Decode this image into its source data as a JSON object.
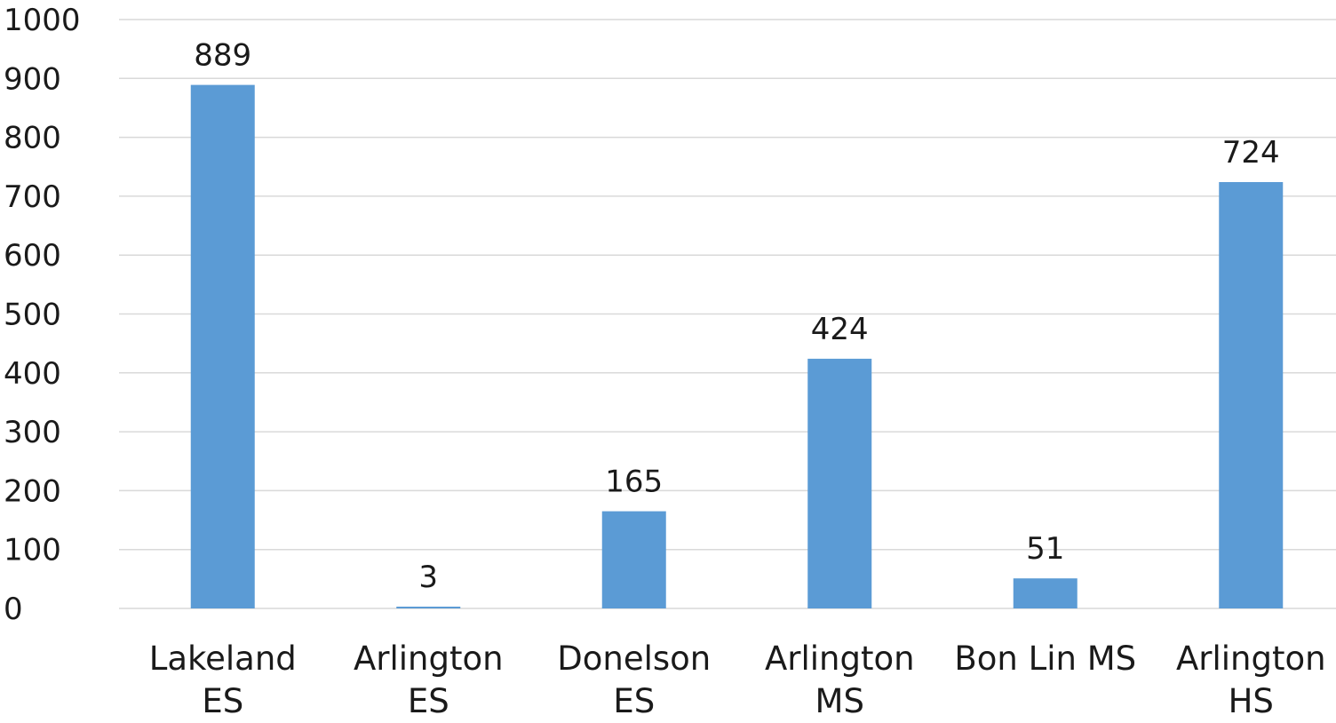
{
  "colors": {
    "bar": "#5b9bd5",
    "gridline": "#d9d9d9",
    "text": "#1a1a1a",
    "background": "#ffffff"
  },
  "chart_data": {
    "type": "bar",
    "title": "",
    "xlabel": "",
    "ylabel": "",
    "categories": [
      [
        "Lakeland",
        "ES"
      ],
      [
        "Arlington",
        "ES"
      ],
      [
        "Donelson",
        "ES"
      ],
      [
        "Arlington",
        "MS"
      ],
      [
        "Bon Lin MS"
      ],
      [
        "Arlington",
        "HS"
      ]
    ],
    "values": [
      889,
      3,
      165,
      424,
      51,
      724
    ],
    "data_labels": [
      "889",
      "3",
      "165",
      "424",
      "51",
      "724"
    ],
    "ylim": [
      0,
      1000
    ],
    "yticks": [
      0,
      100,
      200,
      300,
      400,
      500,
      600,
      700,
      800,
      900,
      1000
    ],
    "ytick_labels": [
      "0",
      "100",
      "200",
      "300",
      "400",
      "500",
      "600",
      "700",
      "800",
      "900",
      "1000"
    ],
    "grid": true,
    "legend": "none"
  }
}
